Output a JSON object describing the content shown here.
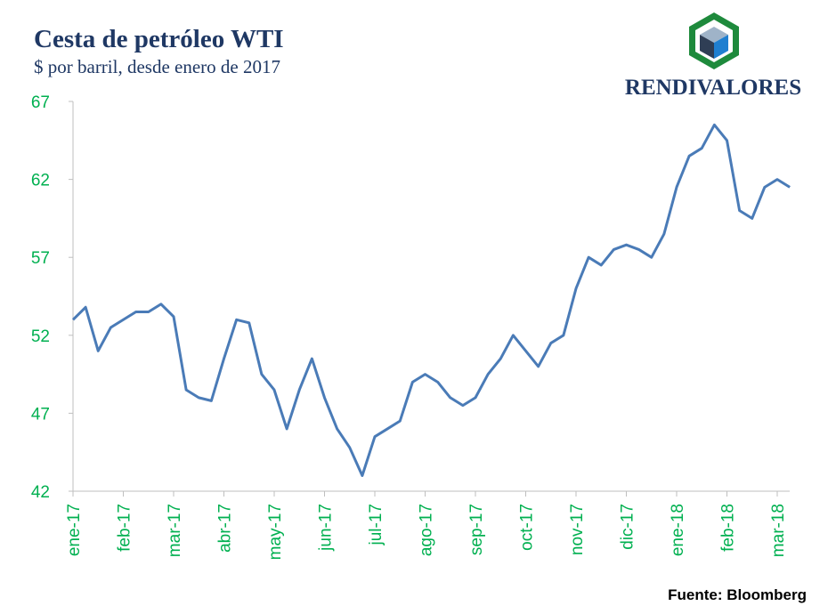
{
  "chart_data": {
    "type": "line",
    "title": "Cesta de petróleo WTI",
    "subtitle": "$ por barril, desde enero de 2017",
    "logo": "RENDIVALORES",
    "source": "Fuente: Bloomberg",
    "categories": [
      "ene-17",
      null,
      null,
      null,
      "feb-17",
      null,
      null,
      null,
      "mar-17",
      null,
      null,
      null,
      "abr-17",
      null,
      null,
      null,
      "may-17",
      null,
      null,
      null,
      "jun-17",
      null,
      null,
      null,
      "jul-17",
      null,
      null,
      null,
      "ago-17",
      null,
      null,
      null,
      "sep-17",
      null,
      null,
      null,
      "oct-17",
      null,
      null,
      null,
      "nov-17",
      null,
      null,
      null,
      "dic-17",
      null,
      null,
      null,
      "ene-18",
      null,
      null,
      null,
      "feb-18",
      null,
      null,
      null,
      "mar-18",
      null
    ],
    "values": [
      53,
      53.8,
      51,
      52.5,
      53,
      53.5,
      53.5,
      54,
      53.2,
      48.5,
      48,
      47.8,
      50.5,
      53,
      52.8,
      49.5,
      48.5,
      46,
      48.5,
      50.5,
      48,
      46,
      44.8,
      43,
      45.5,
      46,
      46.5,
      49,
      49.5,
      49,
      48,
      47.5,
      48,
      49.5,
      50.5,
      52,
      51,
      50,
      51.5,
      52,
      55,
      57,
      56.5,
      57.5,
      57.8,
      57.5,
      57,
      58.5,
      61.5,
      63.5,
      64,
      65.5,
      64.5,
      60,
      59.5,
      61.5,
      62,
      61.5
    ],
    "color": "#4a7bb7",
    "ylim": [
      42,
      67
    ],
    "yticks": [
      42,
      47,
      52,
      57,
      62,
      67
    ],
    "grid": false
  }
}
